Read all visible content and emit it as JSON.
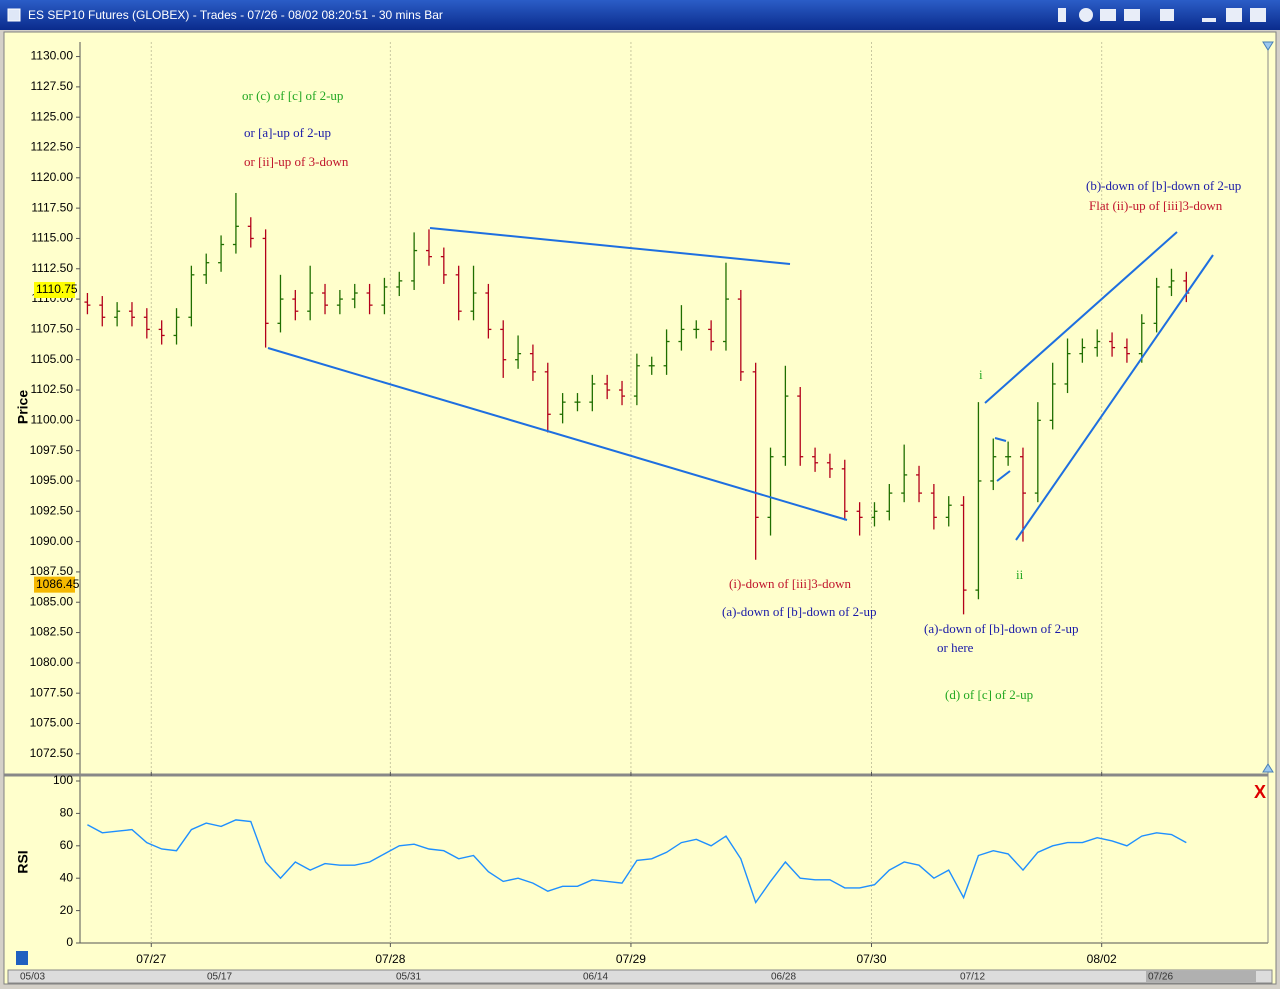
{
  "window": {
    "title": "ES SEP10 Futures (GLOBEX) - Trades - 07/26 - 08/02 08:20:51  - 30 mins Bar"
  },
  "chart_data": [
    {
      "type": "ohlc",
      "y_label": "Price",
      "up_color": "#1f6e00",
      "down_color": "#b3001b",
      "open": [
        1109.75,
        1109.5,
        1108.5,
        1109,
        1108.5,
        1107.5,
        1107,
        1108.5,
        1112,
        1113,
        1114.5,
        1116,
        1115,
        1108,
        1110,
        1109,
        1110.5,
        1109.5,
        1110,
        1110.5,
        1109.5,
        1111,
        1111.5,
        1114,
        1113.5,
        1112,
        1109,
        1110.5,
        1107.5,
        1105,
        1105.5,
        1104,
        1100.5,
        1101.5,
        1101.5,
        1103,
        1102.5,
        1102,
        1104.5,
        1104.5,
        1106.5,
        1107.5,
        1107.5,
        1106.5,
        1110,
        1104,
        1092,
        1097,
        1102,
        1097,
        1096.5,
        1096,
        1092.5,
        1092,
        1092.5,
        1094,
        1095.5,
        1094,
        1092,
        1093,
        1086,
        1095,
        1097,
        1097,
        1094,
        1100,
        1103,
        1105.5,
        1106,
        1106.5,
        1106,
        1105.5,
        1108,
        1111,
        1111.5
      ],
      "high": [
        1110.5,
        1110.25,
        1109.75,
        1109.75,
        1109.25,
        1108.25,
        1109.25,
        1112.75,
        1113.75,
        1115.25,
        1118.75,
        1116.75,
        1115.75,
        1112,
        1110.75,
        1112.75,
        1111.25,
        1110.75,
        1111.25,
        1111.25,
        1111.75,
        1112.25,
        1115.5,
        1115.75,
        1114.25,
        1112.75,
        1112.75,
        1111.25,
        1108.25,
        1107,
        1106.25,
        1104.75,
        1102.25,
        1102.25,
        1103.75,
        1103.75,
        1103.25,
        1105.5,
        1105.25,
        1107.5,
        1109.5,
        1108.25,
        1108.25,
        1113,
        1110.75,
        1104.75,
        1097.75,
        1104.5,
        1102.75,
        1097.75,
        1097.25,
        1096.75,
        1093.25,
        1093.25,
        1094.75,
        1098,
        1096.25,
        1094.75,
        1093.75,
        1093.75,
        1101.5,
        1098.5,
        1098.25,
        1097.75,
        1101.5,
        1104.75,
        1106.75,
        1106.75,
        1107.5,
        1107.25,
        1106.75,
        1108.75,
        1111.75,
        1112.5,
        1112.25
      ],
      "low": [
        1108.75,
        1107.75,
        1107.75,
        1107.75,
        1106.75,
        1106.25,
        1106.25,
        1107.75,
        1111.25,
        1112.25,
        1113.75,
        1114.25,
        1106,
        1107.25,
        1108.25,
        1108.25,
        1108.75,
        1108.75,
        1109.25,
        1108.75,
        1108.75,
        1110.25,
        1110.75,
        1112.75,
        1111.25,
        1108.25,
        1108.25,
        1106.75,
        1103.5,
        1104.25,
        1103.25,
        1099,
        1099.75,
        1100.75,
        1100.75,
        1101.75,
        1101.25,
        1101.25,
        1103.75,
        1103.75,
        1105.75,
        1106.75,
        1105.75,
        1105.75,
        1103.25,
        1088.5,
        1090.5,
        1096.25,
        1096.25,
        1095.75,
        1095.25,
        1091.75,
        1090.5,
        1091.25,
        1091.75,
        1093.25,
        1093.25,
        1091,
        1091.25,
        1084,
        1085.25,
        1094.25,
        1096.25,
        1090,
        1093.25,
        1099.25,
        1102.25,
        1104.75,
        1105.25,
        1105.25,
        1104.75,
        1104.75,
        1107.25,
        1110.25,
        1109.75
      ],
      "close": [
        1109.5,
        1108.5,
        1109,
        1108.5,
        1107.5,
        1107,
        1108.5,
        1112,
        1113,
        1114.5,
        1116,
        1115,
        1108,
        1110,
        1109,
        1110.5,
        1109.5,
        1110,
        1110.5,
        1109.5,
        1111,
        1111.5,
        1114,
        1113.5,
        1112,
        1109,
        1110.5,
        1107.5,
        1105,
        1105.5,
        1104,
        1100.5,
        1101.5,
        1101.5,
        1103,
        1102.5,
        1102,
        1104.5,
        1104.5,
        1106.5,
        1107.5,
        1107.5,
        1106.5,
        1110,
        1104,
        1092,
        1097,
        1102,
        1097,
        1096.5,
        1096,
        1092.5,
        1092,
        1092.5,
        1094,
        1095.5,
        1094,
        1092,
        1093,
        1086,
        1095,
        1097,
        1097,
        1094,
        1100,
        1103,
        1105.5,
        1106,
        1106.5,
        1106,
        1105.5,
        1108,
        1111,
        1111.5,
        1110.5
      ],
      "xlim": [
        0,
        80
      ],
      "xticks": [
        {
          "value": 4.8,
          "label": "07/27"
        },
        {
          "value": 20.9,
          "label": "07/28"
        },
        {
          "value": 37.1,
          "label": "07/29"
        },
        {
          "value": 53.3,
          "label": "07/30"
        },
        {
          "value": 68.8,
          "label": "08/02"
        }
      ],
      "ylim": [
        1071,
        1131.2
      ],
      "yticks": [
        {
          "value": 1130,
          "label": "1130.00"
        },
        {
          "value": 1127.5,
          "label": "1127.50"
        },
        {
          "value": 1125,
          "label": "1125.00"
        },
        {
          "value": 1122.5,
          "label": "1122.50"
        },
        {
          "value": 1120,
          "label": "1120.00"
        },
        {
          "value": 1117.5,
          "label": "1117.50"
        },
        {
          "value": 1115,
          "label": "1115.00"
        },
        {
          "value": 1112.5,
          "label": "1112.50"
        },
        {
          "value": 1110,
          "label": "1110.00"
        },
        {
          "value": 1107.5,
          "label": "1107.50"
        },
        {
          "value": 1105,
          "label": "1105.00"
        },
        {
          "value": 1102.5,
          "label": "1102.50"
        },
        {
          "value": 1100,
          "label": "1100.00"
        },
        {
          "value": 1097.5,
          "label": "1097.50"
        },
        {
          "value": 1095,
          "label": "1095.00"
        },
        {
          "value": 1092.5,
          "label": "1092.50"
        },
        {
          "value": 1090,
          "label": "1090.00"
        },
        {
          "value": 1087.5,
          "label": "1087.50"
        },
        {
          "value": 1085,
          "label": "1085.00"
        },
        {
          "value": 1082.5,
          "label": "1082.50"
        },
        {
          "value": 1080,
          "label": "1080.00"
        },
        {
          "value": 1077.5,
          "label": "1077.50"
        },
        {
          "value": 1075,
          "label": "1075.00"
        },
        {
          "value": 1072.5,
          "label": "1072.50"
        }
      ],
      "price_markers": [
        {
          "value": 1110.75,
          "color": "#ffff00"
        },
        {
          "value": 1086.45,
          "color": "#f5b800"
        }
      ],
      "annotations": [
        {
          "text": "or (c) of [c] of 2-up",
          "color": "#22a822"
        },
        {
          "text": "or [a]-up of 2-up",
          "color": "#1a1aa8"
        },
        {
          "text": "or [ii]-up of 3-down",
          "color": "#c0142c"
        },
        {
          "text": "(b)-down of [b]-down of 2-up",
          "color": "#1a1aa8"
        },
        {
          "text": "Flat (ii)-up of [iii]3-down",
          "color": "#c0142c"
        },
        {
          "text": "(i)-down of [iii]3-down",
          "color": "#c0142c"
        },
        {
          "text": "(a)-down of [b]-down of 2-up",
          "color": "#1a1aa8"
        },
        {
          "text": "(a)-down of [b]-down of 2-up",
          "color": "#1a1aa8"
        },
        {
          "text": "or here",
          "color": "#1a1aa8"
        },
        {
          "text": "(d) of [c] of 2-up",
          "color": "#22a822"
        },
        {
          "text": "i",
          "color": "#22a822"
        },
        {
          "text": "ii",
          "color": "#22a822"
        }
      ]
    },
    {
      "type": "line",
      "y_label": "RSI",
      "color": "#1e8fff",
      "values": [
        73,
        68,
        69,
        70,
        62,
        58,
        57,
        70,
        74,
        72,
        76,
        75,
        50,
        40,
        50,
        45,
        49,
        48,
        48,
        50,
        55,
        60,
        61,
        58,
        57,
        52,
        54,
        44,
        38,
        40,
        37,
        32,
        35,
        35,
        39,
        38,
        37,
        51,
        52,
        56,
        62,
        64,
        60,
        66,
        52,
        25,
        38,
        50,
        40,
        39,
        39,
        34,
        34,
        36,
        45,
        50,
        48,
        40,
        45,
        28,
        54,
        57,
        55,
        45,
        56,
        60,
        62,
        62,
        65,
        63,
        60,
        66,
        68,
        67,
        62
      ],
      "xlim": [
        0,
        80
      ],
      "xticks": [
        {
          "value": 4.8,
          "label": "07/27"
        },
        {
          "value": 20.9,
          "label": "07/28"
        },
        {
          "value": 37.1,
          "label": "07/29"
        },
        {
          "value": 53.3,
          "label": "07/30"
        },
        {
          "value": 68.8,
          "label": "08/02"
        }
      ],
      "ylim": [
        0,
        100
      ],
      "yticks": [
        0,
        20,
        40,
        60,
        80,
        100
      ]
    }
  ],
  "scrollbar_labels": [
    "05/03",
    "05/17",
    "05/31",
    "06/14",
    "06/28",
    "07/12",
    "07/26"
  ]
}
